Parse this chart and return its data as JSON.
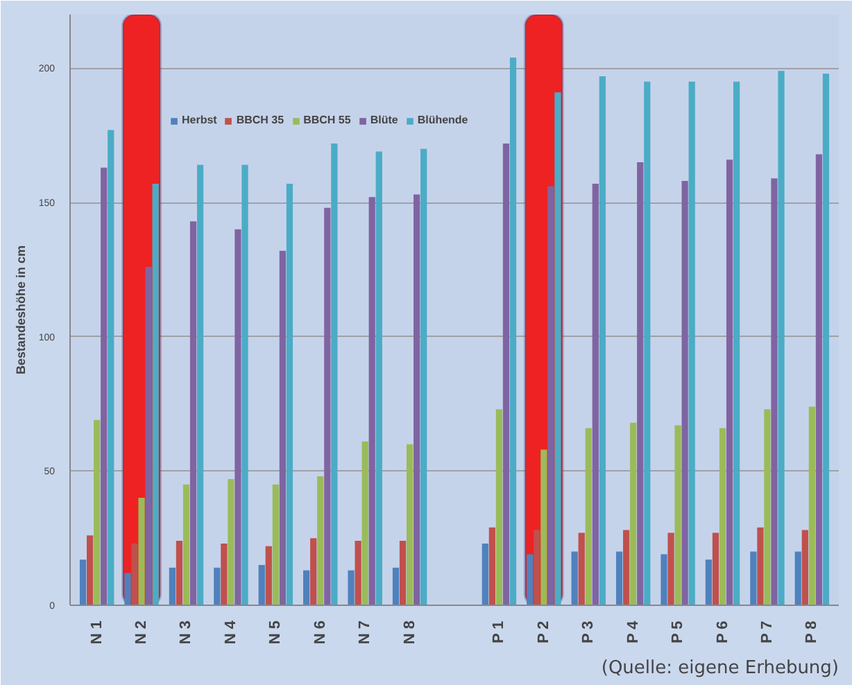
{
  "chart_data": {
    "type": "bar",
    "ylabel": "Bestandeshöhe in cm",
    "categories": [
      "N 1",
      "N 2",
      "N 3",
      "N 4",
      "N 5",
      "N 6",
      "N 7",
      "N 8",
      null,
      "P 1",
      "P 2",
      "P 3",
      "P 4",
      "P 5",
      "P 6",
      "P 7",
      "P 8"
    ],
    "series": [
      {
        "name": "Herbst",
        "color": "#4f81bd",
        "values": [
          17,
          12,
          14,
          14,
          15,
          13,
          13,
          14,
          null,
          23,
          19,
          20,
          20,
          19,
          17,
          20,
          20
        ]
      },
      {
        "name": "BBCH 35",
        "color": "#c0504d",
        "values": [
          26,
          23,
          24,
          23,
          22,
          25,
          24,
          24,
          null,
          29,
          28,
          27,
          28,
          27,
          27,
          29,
          28
        ]
      },
      {
        "name": "BBCH 55",
        "color": "#9bbb59",
        "values": [
          69,
          40,
          45,
          47,
          45,
          48,
          61,
          60,
          null,
          73,
          58,
          66,
          68,
          67,
          66,
          73,
          74
        ]
      },
      {
        "name": "Blüte",
        "color": "#8064a2",
        "values": [
          163,
          126,
          143,
          140,
          132,
          148,
          152,
          153,
          null,
          172,
          156,
          157,
          165,
          158,
          166,
          159,
          168
        ]
      },
      {
        "name": "Blühende",
        "color": "#4bacc6",
        "values": [
          177,
          157,
          164,
          164,
          157,
          172,
          169,
          170,
          null,
          204,
          191,
          197,
          195,
          195,
          195,
          199,
          198
        ]
      }
    ],
    "ylim": [
      0,
      220
    ],
    "yticks": [
      0,
      50,
      100,
      150,
      200
    ],
    "grid": "y",
    "legend": "top",
    "bands": [
      {
        "axis": "x",
        "from": "N 2",
        "to": "N 2",
        "color": "#ee2222"
      },
      {
        "axis": "x",
        "from": "P 2",
        "to": "P 2",
        "color": "#ee2222"
      }
    ],
    "annotations": [
      "(Quelle: eigene Erhebung)"
    ]
  }
}
